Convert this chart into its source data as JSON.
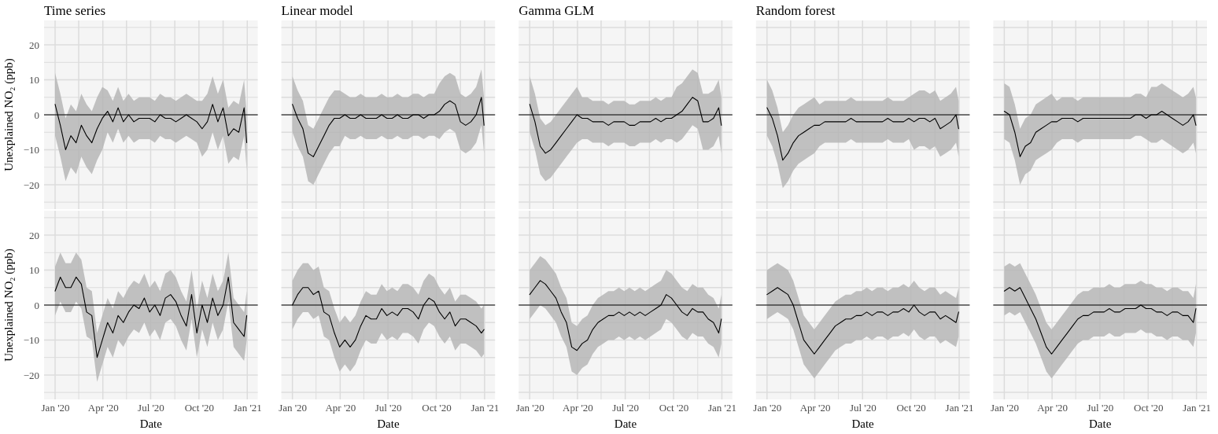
{
  "chart_data": [
    {
      "type": "line",
      "title": "Time series",
      "ylabel": "Unexplained NO₂ (ppb)",
      "tick_labels": "y",
      "grid": true,
      "xlim": [
        "2019-12-11",
        "2021-01-21"
      ],
      "xticks": [
        "2020-01-01",
        "2020-02-15",
        "2020-04-01",
        "2020-05-16",
        "2020-07-01",
        "2020-08-16",
        "2020-10-01",
        "2020-11-16",
        "2021-01-01"
      ],
      "ylim": [
        -27,
        27
      ],
      "yticks": [
        {
          "value": -25,
          "label": null
        },
        {
          "value": -20,
          "label": "−20"
        },
        {
          "value": -15,
          "label": null
        },
        {
          "value": -10,
          "label": "−10"
        },
        {
          "value": -5,
          "label": null
        },
        0,
        {
          "value": 5,
          "label": null
        },
        10,
        {
          "value": 15,
          "label": null
        },
        20,
        {
          "value": 25,
          "label": null
        }
      ],
      "ref_lines": [
        {
          "axis": "y",
          "value": 0,
          "color": "#000000"
        }
      ],
      "x": [
        "2020-01-01",
        "2020-01-11",
        "2020-01-21",
        "2020-01-31",
        "2020-02-10",
        "2020-02-20",
        "2020-03-01",
        "2020-03-11",
        "2020-03-21",
        "2020-03-31",
        "2020-04-10",
        "2020-04-20",
        "2020-04-30",
        "2020-05-10",
        "2020-05-20",
        "2020-05-30",
        "2020-06-09",
        "2020-06-19",
        "2020-06-29",
        "2020-07-09",
        "2020-07-19",
        "2020-07-29",
        "2020-08-08",
        "2020-08-18",
        "2020-08-28",
        "2020-09-07",
        "2020-09-17",
        "2020-09-27",
        "2020-10-07",
        "2020-10-17",
        "2020-10-27",
        "2020-11-06",
        "2020-11-16",
        "2020-11-26",
        "2020-12-06",
        "2020-12-16",
        "2020-12-26",
        "2020-12-31"
      ],
      "series": [
        {
          "color": "#000000",
          "values": [
            3,
            -3,
            -10,
            -6,
            -8,
            -3,
            -6,
            -8,
            -4,
            -1,
            1,
            -2,
            2,
            -2,
            0,
            -2,
            -1,
            -1,
            -1,
            -2,
            0,
            -1,
            -1,
            -2,
            -1,
            0,
            -1,
            -2,
            -4,
            -2,
            3,
            -2,
            2,
            -6,
            -4,
            -5,
            2,
            -8
          ],
          "upper": [
            12,
            6,
            -1,
            3,
            1,
            6,
            3,
            1,
            5,
            8,
            7,
            4,
            8,
            4,
            6,
            4,
            5,
            5,
            5,
            4,
            6,
            5,
            5,
            4,
            5,
            6,
            5,
            4,
            4,
            6,
            11,
            6,
            10,
            2,
            4,
            3,
            10,
            0
          ],
          "lower": [
            -6,
            -12,
            -19,
            -15,
            -17,
            -12,
            -15,
            -17,
            -13,
            -10,
            -5,
            -8,
            -4,
            -8,
            -6,
            -8,
            -7,
            -7,
            -7,
            -8,
            -6,
            -7,
            -7,
            -8,
            -7,
            -6,
            -7,
            -8,
            -12,
            -10,
            -5,
            -10,
            -6,
            -14,
            -12,
            -13,
            -6,
            -16
          ]
        }
      ]
    },
    {
      "type": "line",
      "title": "Linear model",
      "tick_labels": false,
      "grid": true,
      "xlim": [
        "2019-12-11",
        "2021-01-21"
      ],
      "xticks": [
        "2020-01-01",
        "2020-02-15",
        "2020-04-01",
        "2020-05-16",
        "2020-07-01",
        "2020-08-16",
        "2020-10-01",
        "2020-11-16",
        "2021-01-01"
      ],
      "ylim": [
        -27,
        27
      ],
      "yticks": [
        -25,
        -20,
        -15,
        -10,
        -5,
        0,
        5,
        10,
        15,
        20,
        25
      ],
      "ref_lines": [
        {
          "axis": "y",
          "value": 0,
          "color": "#000000"
        }
      ],
      "x": [
        "2020-01-01",
        "2020-01-11",
        "2020-01-21",
        "2020-01-31",
        "2020-02-10",
        "2020-02-20",
        "2020-03-01",
        "2020-03-11",
        "2020-03-21",
        "2020-03-31",
        "2020-04-10",
        "2020-04-20",
        "2020-04-30",
        "2020-05-10",
        "2020-05-20",
        "2020-05-30",
        "2020-06-09",
        "2020-06-19",
        "2020-06-29",
        "2020-07-09",
        "2020-07-19",
        "2020-07-29",
        "2020-08-08",
        "2020-08-18",
        "2020-08-28",
        "2020-09-07",
        "2020-09-17",
        "2020-09-27",
        "2020-10-07",
        "2020-10-17",
        "2020-10-27",
        "2020-11-06",
        "2020-11-16",
        "2020-11-26",
        "2020-12-06",
        "2020-12-16",
        "2020-12-26",
        "2020-12-31"
      ],
      "series": [
        {
          "color": "#000000",
          "values": [
            3,
            -1,
            -4,
            -11,
            -12,
            -9,
            -6,
            -3,
            -1,
            -1,
            0,
            -1,
            -1,
            0,
            -1,
            -1,
            -1,
            0,
            -1,
            -1,
            0,
            -1,
            -1,
            0,
            0,
            -1,
            0,
            0,
            1,
            3,
            4,
            3,
            -2,
            -3,
            -2,
            0,
            5,
            -3
          ],
          "upper": [
            11,
            7,
            4,
            -3,
            -4,
            -1,
            2,
            5,
            7,
            7,
            6,
            5,
            5,
            6,
            5,
            5,
            5,
            6,
            5,
            5,
            6,
            5,
            5,
            6,
            6,
            5,
            6,
            6,
            9,
            11,
            12,
            11,
            6,
            5,
            6,
            8,
            13,
            5
          ],
          "lower": [
            -5,
            -9,
            -12,
            -19,
            -20,
            -17,
            -14,
            -11,
            -9,
            -9,
            -6,
            -7,
            -7,
            -6,
            -7,
            -7,
            -7,
            -6,
            -7,
            -7,
            -6,
            -7,
            -7,
            -6,
            -6,
            -7,
            -6,
            -6,
            -7,
            -5,
            -4,
            -5,
            -10,
            -11,
            -10,
            -8,
            -3,
            -11
          ]
        }
      ]
    },
    {
      "type": "line",
      "title": "Gamma GLM",
      "tick_labels": false,
      "grid": true,
      "xlim": [
        "2019-12-11",
        "2021-01-21"
      ],
      "xticks": [
        "2020-01-01",
        "2020-02-15",
        "2020-04-01",
        "2020-05-16",
        "2020-07-01",
        "2020-08-16",
        "2020-10-01",
        "2020-11-16",
        "2021-01-01"
      ],
      "ylim": [
        -27,
        27
      ],
      "yticks": [
        -25,
        -20,
        -15,
        -10,
        -5,
        0,
        5,
        10,
        15,
        20,
        25
      ],
      "ref_lines": [
        {
          "axis": "y",
          "value": 0,
          "color": "#000000"
        }
      ],
      "x": [
        "2020-01-01",
        "2020-01-11",
        "2020-01-21",
        "2020-01-31",
        "2020-02-10",
        "2020-02-20",
        "2020-03-01",
        "2020-03-11",
        "2020-03-21",
        "2020-03-31",
        "2020-04-10",
        "2020-04-20",
        "2020-04-30",
        "2020-05-10",
        "2020-05-20",
        "2020-05-30",
        "2020-06-09",
        "2020-06-19",
        "2020-06-29",
        "2020-07-09",
        "2020-07-19",
        "2020-07-29",
        "2020-08-08",
        "2020-08-18",
        "2020-08-28",
        "2020-09-07",
        "2020-09-17",
        "2020-09-27",
        "2020-10-07",
        "2020-10-17",
        "2020-10-27",
        "2020-11-06",
        "2020-11-16",
        "2020-11-26",
        "2020-12-06",
        "2020-12-16",
        "2020-12-26",
        "2020-12-31"
      ],
      "series": [
        {
          "color": "#000000",
          "values": [
            3,
            -2,
            -9,
            -11,
            -10,
            -8,
            -6,
            -4,
            -2,
            0,
            -1,
            -1,
            -2,
            -2,
            -2,
            -3,
            -2,
            -2,
            -2,
            -3,
            -3,
            -2,
            -2,
            -2,
            -1,
            -2,
            -1,
            -1,
            0,
            1,
            3,
            5,
            4,
            -2,
            -2,
            -1,
            2,
            -3
          ],
          "upper": [
            11,
            6,
            -1,
            -3,
            -2,
            0,
            2,
            4,
            6,
            8,
            5,
            5,
            4,
            4,
            4,
            3,
            4,
            4,
            4,
            3,
            3,
            4,
            4,
            4,
            5,
            4,
            5,
            5,
            8,
            9,
            11,
            13,
            12,
            6,
            6,
            7,
            10,
            5
          ],
          "lower": [
            -5,
            -10,
            -17,
            -19,
            -18,
            -16,
            -14,
            -12,
            -10,
            -8,
            -7,
            -7,
            -8,
            -8,
            -8,
            -9,
            -8,
            -8,
            -8,
            -9,
            -9,
            -8,
            -8,
            -8,
            -7,
            -8,
            -7,
            -7,
            -8,
            -7,
            -5,
            -3,
            -4,
            -10,
            -10,
            -9,
            -6,
            -11
          ]
        }
      ]
    },
    {
      "type": "line",
      "title": "Random forest",
      "tick_labels": false,
      "grid": true,
      "xlim": [
        "2019-12-11",
        "2021-01-21"
      ],
      "xticks": [
        "2020-01-01",
        "2020-02-15",
        "2020-04-01",
        "2020-05-16",
        "2020-07-01",
        "2020-08-16",
        "2020-10-01",
        "2020-11-16",
        "2021-01-01"
      ],
      "ylim": [
        -27,
        27
      ],
      "yticks": [
        -25,
        -20,
        -15,
        -10,
        -5,
        0,
        5,
        10,
        15,
        20,
        25
      ],
      "ref_lines": [
        {
          "axis": "y",
          "value": 0,
          "color": "#000000"
        }
      ],
      "x": [
        "2020-01-01",
        "2020-01-11",
        "2020-01-21",
        "2020-01-31",
        "2020-02-10",
        "2020-02-20",
        "2020-03-01",
        "2020-03-11",
        "2020-03-21",
        "2020-03-31",
        "2020-04-10",
        "2020-04-20",
        "2020-04-30",
        "2020-05-10",
        "2020-05-20",
        "2020-05-30",
        "2020-06-09",
        "2020-06-19",
        "2020-06-29",
        "2020-07-09",
        "2020-07-19",
        "2020-07-29",
        "2020-08-08",
        "2020-08-18",
        "2020-08-28",
        "2020-09-07",
        "2020-09-17",
        "2020-09-27",
        "2020-10-07",
        "2020-10-17",
        "2020-10-27",
        "2020-11-06",
        "2020-11-16",
        "2020-11-26",
        "2020-12-06",
        "2020-12-16",
        "2020-12-26",
        "2020-12-31"
      ],
      "series": [
        {
          "color": "#000000",
          "values": [
            2,
            -1,
            -6,
            -13,
            -11,
            -8,
            -6,
            -5,
            -4,
            -3,
            -3,
            -2,
            -2,
            -2,
            -2,
            -2,
            -1,
            -2,
            -2,
            -2,
            -2,
            -2,
            -2,
            -1,
            -2,
            -2,
            -2,
            -1,
            -2,
            -1,
            -1,
            -2,
            -1,
            -4,
            -3,
            -2,
            0,
            -4
          ],
          "upper": [
            10,
            7,
            2,
            -5,
            -3,
            0,
            2,
            3,
            4,
            5,
            3,
            4,
            4,
            4,
            4,
            4,
            5,
            4,
            4,
            4,
            4,
            4,
            4,
            5,
            4,
            4,
            4,
            5,
            6,
            7,
            7,
            6,
            7,
            4,
            5,
            6,
            8,
            4
          ],
          "lower": [
            -6,
            -9,
            -14,
            -21,
            -19,
            -16,
            -14,
            -13,
            -12,
            -11,
            -9,
            -8,
            -8,
            -8,
            -8,
            -8,
            -7,
            -8,
            -8,
            -8,
            -8,
            -8,
            -8,
            -7,
            -8,
            -8,
            -8,
            -7,
            -10,
            -9,
            -9,
            -10,
            -9,
            -12,
            -11,
            -10,
            -8,
            -12
          ]
        }
      ]
    },
    {
      "type": "line",
      "tick_labels": false,
      "grid": true,
      "xlim": [
        "2019-12-11",
        "2021-01-21"
      ],
      "xticks": [
        "2020-01-01",
        "2020-02-15",
        "2020-04-01",
        "2020-05-16",
        "2020-07-01",
        "2020-08-16",
        "2020-10-01",
        "2020-11-16",
        "2021-01-01"
      ],
      "ylim": [
        -27,
        27
      ],
      "yticks": [
        -25,
        -20,
        -15,
        -10,
        -5,
        0,
        5,
        10,
        15,
        20,
        25
      ],
      "ref_lines": [
        {
          "axis": "y",
          "value": 0,
          "color": "#000000"
        }
      ],
      "x": [
        "2020-01-01",
        "2020-01-11",
        "2020-01-21",
        "2020-01-31",
        "2020-02-10",
        "2020-02-20",
        "2020-03-01",
        "2020-03-11",
        "2020-03-21",
        "2020-03-31",
        "2020-04-10",
        "2020-04-20",
        "2020-04-30",
        "2020-05-10",
        "2020-05-20",
        "2020-05-30",
        "2020-06-09",
        "2020-06-19",
        "2020-06-29",
        "2020-07-09",
        "2020-07-19",
        "2020-07-29",
        "2020-08-08",
        "2020-08-18",
        "2020-08-28",
        "2020-09-07",
        "2020-09-17",
        "2020-09-27",
        "2020-10-07",
        "2020-10-17",
        "2020-10-27",
        "2020-11-06",
        "2020-11-16",
        "2020-11-26",
        "2020-12-06",
        "2020-12-16",
        "2020-12-26",
        "2020-12-31"
      ],
      "series": [
        {
          "color": "#000000",
          "values": [
            1,
            0,
            -5,
            -12,
            -9,
            -8,
            -5,
            -4,
            -3,
            -2,
            -2,
            -1,
            -1,
            -1,
            -2,
            -1,
            -1,
            -1,
            -1,
            -1,
            -1,
            -1,
            -1,
            -1,
            -1,
            0,
            0,
            -1,
            0,
            0,
            1,
            0,
            -1,
            -2,
            -3,
            -2,
            0,
            -3
          ],
          "upper": [
            9,
            8,
            3,
            -4,
            -1,
            0,
            3,
            4,
            5,
            6,
            4,
            5,
            5,
            5,
            4,
            5,
            5,
            5,
            5,
            5,
            5,
            5,
            5,
            5,
            5,
            6,
            6,
            5,
            8,
            8,
            9,
            8,
            7,
            6,
            5,
            6,
            8,
            5
          ],
          "lower": [
            -7,
            -8,
            -13,
            -20,
            -17,
            -16,
            -13,
            -12,
            -11,
            -10,
            -8,
            -7,
            -7,
            -7,
            -8,
            -7,
            -7,
            -7,
            -7,
            -7,
            -7,
            -7,
            -7,
            -7,
            -7,
            -6,
            -6,
            -7,
            -8,
            -8,
            -7,
            -8,
            -9,
            -10,
            -11,
            -10,
            -8,
            -11
          ]
        }
      ]
    },
    {
      "type": "line",
      "xlabel": "Date",
      "ylabel": "Unexplained NO₂ (ppb)",
      "grid": true,
      "xlim": [
        "2019-12-11",
        "2021-01-21"
      ],
      "xticks": [
        {
          "value": "2020-01-01",
          "label": "Jan '20"
        },
        {
          "value": "2020-02-15",
          "label": null
        },
        {
          "value": "2020-04-01",
          "label": "Apr '20"
        },
        {
          "value": "2020-05-16",
          "label": null
        },
        {
          "value": "2020-07-01",
          "label": "Jul '20"
        },
        {
          "value": "2020-08-16",
          "label": null
        },
        {
          "value": "2020-10-01",
          "label": "Oct '20"
        },
        {
          "value": "2020-11-16",
          "label": null
        },
        {
          "value": "2021-01-01",
          "label": "Jan '21"
        }
      ],
      "ylim": [
        -27,
        27
      ],
      "yticks": [
        {
          "value": -25,
          "label": null
        },
        {
          "value": -20,
          "label": "−20"
        },
        {
          "value": -15,
          "label": null
        },
        {
          "value": -10,
          "label": "−10"
        },
        {
          "value": -5,
          "label": null
        },
        0,
        {
          "value": 5,
          "label": null
        },
        10,
        {
          "value": 15,
          "label": null
        },
        20,
        {
          "value": 25,
          "label": null
        }
      ],
      "ref_lines": [
        {
          "axis": "y",
          "value": 0,
          "color": "#000000"
        }
      ],
      "x": [
        "2020-01-01",
        "2020-01-11",
        "2020-01-21",
        "2020-01-31",
        "2020-02-10",
        "2020-02-20",
        "2020-03-01",
        "2020-03-11",
        "2020-03-21",
        "2020-03-31",
        "2020-04-10",
        "2020-04-20",
        "2020-04-30",
        "2020-05-10",
        "2020-05-20",
        "2020-05-30",
        "2020-06-09",
        "2020-06-19",
        "2020-06-29",
        "2020-07-09",
        "2020-07-19",
        "2020-07-29",
        "2020-08-08",
        "2020-08-18",
        "2020-08-28",
        "2020-09-07",
        "2020-09-17",
        "2020-09-27",
        "2020-10-07",
        "2020-10-17",
        "2020-10-27",
        "2020-11-06",
        "2020-11-16",
        "2020-11-26",
        "2020-12-06",
        "2020-12-16",
        "2020-12-26",
        "2020-12-31"
      ],
      "series": [
        {
          "color": "#000000",
          "values": [
            4,
            8,
            5,
            5,
            8,
            6,
            -2,
            -3,
            -15,
            -10,
            -5,
            -8,
            -3,
            -5,
            -2,
            0,
            -1,
            2,
            -2,
            0,
            -3,
            2,
            3,
            1,
            -3,
            -6,
            3,
            -8,
            0,
            -5,
            2,
            -3,
            0,
            8,
            -5,
            -7,
            -9,
            -3
          ],
          "upper": [
            11,
            15,
            12,
            12,
            15,
            13,
            5,
            4,
            -8,
            -3,
            2,
            -1,
            4,
            2,
            5,
            7,
            6,
            9,
            5,
            7,
            4,
            9,
            10,
            8,
            4,
            1,
            10,
            -1,
            7,
            2,
            9,
            4,
            7,
            15,
            2,
            0,
            -2,
            4
          ],
          "lower": [
            -3,
            1,
            -2,
            -2,
            1,
            -1,
            -9,
            -10,
            -22,
            -17,
            -12,
            -15,
            -10,
            -12,
            -9,
            -7,
            -8,
            -5,
            -9,
            -7,
            -10,
            -5,
            -4,
            -6,
            -10,
            -13,
            -4,
            -15,
            -7,
            -12,
            -5,
            -10,
            -7,
            1,
            -12,
            -14,
            -16,
            -10
          ]
        }
      ]
    },
    {
      "type": "line",
      "xlabel": "Date",
      "tick_labels": "x",
      "grid": true,
      "xlim": [
        "2019-12-11",
        "2021-01-21"
      ],
      "xticks": [
        {
          "value": "2020-01-01",
          "label": "Jan '20"
        },
        {
          "value": "2020-02-15",
          "label": null
        },
        {
          "value": "2020-04-01",
          "label": "Apr '20"
        },
        {
          "value": "2020-05-16",
          "label": null
        },
        {
          "value": "2020-07-01",
          "label": "Jul '20"
        },
        {
          "value": "2020-08-16",
          "label": null
        },
        {
          "value": "2020-10-01",
          "label": "Oct '20"
        },
        {
          "value": "2020-11-16",
          "label": null
        },
        {
          "value": "2021-01-01",
          "label": "Jan '21"
        }
      ],
      "ylim": [
        -27,
        27
      ],
      "yticks": [
        -25,
        -20,
        -15,
        -10,
        -5,
        0,
        5,
        10,
        15,
        20,
        25
      ],
      "ref_lines": [
        {
          "axis": "y",
          "value": 0,
          "color": "#000000"
        }
      ],
      "x": [
        "2020-01-01",
        "2020-01-11",
        "2020-01-21",
        "2020-01-31",
        "2020-02-10",
        "2020-02-20",
        "2020-03-01",
        "2020-03-11",
        "2020-03-21",
        "2020-03-31",
        "2020-04-10",
        "2020-04-20",
        "2020-04-30",
        "2020-05-10",
        "2020-05-20",
        "2020-05-30",
        "2020-06-09",
        "2020-06-19",
        "2020-06-29",
        "2020-07-09",
        "2020-07-19",
        "2020-07-29",
        "2020-08-08",
        "2020-08-18",
        "2020-08-28",
        "2020-09-07",
        "2020-09-17",
        "2020-09-27",
        "2020-10-07",
        "2020-10-17",
        "2020-10-27",
        "2020-11-06",
        "2020-11-16",
        "2020-11-26",
        "2020-12-06",
        "2020-12-16",
        "2020-12-26",
        "2020-12-31"
      ],
      "series": [
        {
          "color": "#000000",
          "values": [
            0,
            3,
            5,
            5,
            3,
            4,
            -2,
            -3,
            -8,
            -12,
            -10,
            -12,
            -10,
            -6,
            -3,
            -4,
            -4,
            -1,
            -3,
            -2,
            -3,
            -1,
            -1,
            -2,
            -4,
            0,
            2,
            1,
            -2,
            -4,
            -2,
            -6,
            -4,
            -4,
            -5,
            -6,
            -8,
            -7
          ],
          "upper": [
            7,
            10,
            12,
            12,
            10,
            11,
            5,
            4,
            -1,
            -5,
            -3,
            -5,
            -3,
            1,
            4,
            3,
            3,
            6,
            4,
            5,
            4,
            6,
            6,
            5,
            3,
            7,
            9,
            8,
            5,
            3,
            5,
            1,
            3,
            3,
            2,
            1,
            -1,
            0
          ],
          "lower": [
            -7,
            -4,
            -2,
            -2,
            -4,
            -3,
            -9,
            -10,
            -15,
            -19,
            -17,
            -19,
            -17,
            -13,
            -10,
            -11,
            -11,
            -8,
            -10,
            -9,
            -10,
            -8,
            -8,
            -9,
            -11,
            -7,
            -5,
            -6,
            -9,
            -11,
            -9,
            -13,
            -11,
            -11,
            -12,
            -13,
            -15,
            -14
          ]
        }
      ]
    },
    {
      "type": "line",
      "xlabel": "Date",
      "tick_labels": "x",
      "grid": true,
      "xlim": [
        "2019-12-11",
        "2021-01-21"
      ],
      "xticks": [
        {
          "value": "2020-01-01",
          "label": "Jan '20"
        },
        {
          "value": "2020-02-15",
          "label": null
        },
        {
          "value": "2020-04-01",
          "label": "Apr '20"
        },
        {
          "value": "2020-05-16",
          "label": null
        },
        {
          "value": "2020-07-01",
          "label": "Jul '20"
        },
        {
          "value": "2020-08-16",
          "label": null
        },
        {
          "value": "2020-10-01",
          "label": "Oct '20"
        },
        {
          "value": "2020-11-16",
          "label": null
        },
        {
          "value": "2021-01-01",
          "label": "Jan '21"
        }
      ],
      "ylim": [
        -27,
        27
      ],
      "yticks": [
        -25,
        -20,
        -15,
        -10,
        -5,
        0,
        5,
        10,
        15,
        20,
        25
      ],
      "ref_lines": [
        {
          "axis": "y",
          "value": 0,
          "color": "#000000"
        }
      ],
      "x": [
        "2020-01-01",
        "2020-01-11",
        "2020-01-21",
        "2020-01-31",
        "2020-02-10",
        "2020-02-20",
        "2020-03-01",
        "2020-03-11",
        "2020-03-21",
        "2020-03-31",
        "2020-04-10",
        "2020-04-20",
        "2020-04-30",
        "2020-05-10",
        "2020-05-20",
        "2020-05-30",
        "2020-06-09",
        "2020-06-19",
        "2020-06-29",
        "2020-07-09",
        "2020-07-19",
        "2020-07-29",
        "2020-08-08",
        "2020-08-18",
        "2020-08-28",
        "2020-09-07",
        "2020-09-17",
        "2020-09-27",
        "2020-10-07",
        "2020-10-17",
        "2020-10-27",
        "2020-11-06",
        "2020-11-16",
        "2020-11-26",
        "2020-12-06",
        "2020-12-16",
        "2020-12-26",
        "2020-12-31"
      ],
      "series": [
        {
          "color": "#000000",
          "values": [
            3,
            5,
            7,
            6,
            4,
            2,
            -2,
            -5,
            -12,
            -13,
            -11,
            -10,
            -7,
            -5,
            -4,
            -3,
            -3,
            -2,
            -3,
            -2,
            -3,
            -2,
            -3,
            -2,
            -1,
            0,
            3,
            2,
            0,
            -2,
            -3,
            -1,
            -2,
            -2,
            -4,
            -5,
            -8,
            -4
          ],
          "upper": [
            10,
            12,
            14,
            13,
            11,
            9,
            5,
            2,
            -5,
            -6,
            -4,
            -3,
            0,
            2,
            3,
            4,
            4,
            5,
            4,
            5,
            4,
            5,
            4,
            5,
            6,
            7,
            10,
            9,
            7,
            5,
            4,
            6,
            5,
            5,
            3,
            2,
            -1,
            3
          ],
          "lower": [
            -4,
            -2,
            0,
            -1,
            -3,
            -5,
            -9,
            -12,
            -19,
            -20,
            -18,
            -17,
            -14,
            -12,
            -11,
            -10,
            -10,
            -9,
            -10,
            -9,
            -10,
            -9,
            -10,
            -9,
            -8,
            -7,
            -4,
            -5,
            -7,
            -9,
            -10,
            -8,
            -9,
            -9,
            -11,
            -12,
            -15,
            -11
          ]
        }
      ]
    },
    {
      "type": "line",
      "xlabel": "Date",
      "tick_labels": "x",
      "grid": true,
      "xlim": [
        "2019-12-11",
        "2021-01-21"
      ],
      "xticks": [
        {
          "value": "2020-01-01",
          "label": "Jan '20"
        },
        {
          "value": "2020-02-15",
          "label": null
        },
        {
          "value": "2020-04-01",
          "label": "Apr '20"
        },
        {
          "value": "2020-05-16",
          "label": null
        },
        {
          "value": "2020-07-01",
          "label": "Jul '20"
        },
        {
          "value": "2020-08-16",
          "label": null
        },
        {
          "value": "2020-10-01",
          "label": "Oct '20"
        },
        {
          "value": "2020-11-16",
          "label": null
        },
        {
          "value": "2021-01-01",
          "label": "Jan '21"
        }
      ],
      "ylim": [
        -27,
        27
      ],
      "yticks": [
        -25,
        -20,
        -15,
        -10,
        -5,
        0,
        5,
        10,
        15,
        20,
        25
      ],
      "ref_lines": [
        {
          "axis": "y",
          "value": 0,
          "color": "#000000"
        }
      ],
      "x": [
        "2020-01-01",
        "2020-01-11",
        "2020-01-21",
        "2020-01-31",
        "2020-02-10",
        "2020-02-20",
        "2020-03-01",
        "2020-03-11",
        "2020-03-21",
        "2020-03-31",
        "2020-04-10",
        "2020-04-20",
        "2020-04-30",
        "2020-05-10",
        "2020-05-20",
        "2020-05-30",
        "2020-06-09",
        "2020-06-19",
        "2020-06-29",
        "2020-07-09",
        "2020-07-19",
        "2020-07-29",
        "2020-08-08",
        "2020-08-18",
        "2020-08-28",
        "2020-09-07",
        "2020-09-17",
        "2020-09-27",
        "2020-10-07",
        "2020-10-17",
        "2020-10-27",
        "2020-11-06",
        "2020-11-16",
        "2020-11-26",
        "2020-12-06",
        "2020-12-16",
        "2020-12-26",
        "2020-12-31"
      ],
      "series": [
        {
          "color": "#000000",
          "values": [
            3,
            4,
            5,
            4,
            3,
            0,
            -5,
            -10,
            -12,
            -14,
            -12,
            -10,
            -8,
            -6,
            -5,
            -4,
            -4,
            -3,
            -3,
            -2,
            -3,
            -2,
            -2,
            -3,
            -2,
            -2,
            -1,
            -2,
            0,
            -2,
            -3,
            -2,
            -2,
            -4,
            -3,
            -4,
            -5,
            -2
          ],
          "upper": [
            10,
            11,
            12,
            11,
            10,
            7,
            2,
            -3,
            -5,
            -7,
            -5,
            -3,
            -1,
            1,
            2,
            3,
            3,
            4,
            4,
            5,
            4,
            5,
            5,
            4,
            5,
            5,
            6,
            5,
            7,
            5,
            4,
            5,
            5,
            3,
            4,
            3,
            2,
            5
          ],
          "lower": [
            -4,
            -3,
            -2,
            -3,
            -4,
            -7,
            -12,
            -17,
            -19,
            -21,
            -19,
            -17,
            -15,
            -13,
            -12,
            -11,
            -11,
            -10,
            -10,
            -9,
            -10,
            -9,
            -9,
            -10,
            -9,
            -9,
            -8,
            -9,
            -7,
            -9,
            -10,
            -9,
            -9,
            -11,
            -10,
            -11,
            -12,
            -9
          ]
        }
      ]
    },
    {
      "type": "line",
      "xlabel": "Date",
      "tick_labels": "x",
      "grid": true,
      "xlim": [
        "2019-12-11",
        "2021-01-21"
      ],
      "xticks": [
        {
          "value": "2020-01-01",
          "label": "Jan '20"
        },
        {
          "value": "2020-02-15",
          "label": null
        },
        {
          "value": "2020-04-01",
          "label": "Apr '20"
        },
        {
          "value": "2020-05-16",
          "label": null
        },
        {
          "value": "2020-07-01",
          "label": "Jul '20"
        },
        {
          "value": "2020-08-16",
          "label": null
        },
        {
          "value": "2020-10-01",
          "label": "Oct '20"
        },
        {
          "value": "2020-11-16",
          "label": null
        },
        {
          "value": "2021-01-01",
          "label": "Jan '21"
        }
      ],
      "ylim": [
        -27,
        27
      ],
      "yticks": [
        -25,
        -20,
        -15,
        -10,
        -5,
        0,
        5,
        10,
        15,
        20,
        25
      ],
      "ref_lines": [
        {
          "axis": "y",
          "value": 0,
          "color": "#000000"
        }
      ],
      "x": [
        "2020-01-01",
        "2020-01-11",
        "2020-01-21",
        "2020-01-31",
        "2020-02-10",
        "2020-02-20",
        "2020-03-01",
        "2020-03-11",
        "2020-03-21",
        "2020-03-31",
        "2020-04-10",
        "2020-04-20",
        "2020-04-30",
        "2020-05-10",
        "2020-05-20",
        "2020-05-30",
        "2020-06-09",
        "2020-06-19",
        "2020-06-29",
        "2020-07-09",
        "2020-07-19",
        "2020-07-29",
        "2020-08-08",
        "2020-08-18",
        "2020-08-28",
        "2020-09-07",
        "2020-09-17",
        "2020-09-27",
        "2020-10-07",
        "2020-10-17",
        "2020-10-27",
        "2020-11-06",
        "2020-11-16",
        "2020-11-26",
        "2020-12-06",
        "2020-12-16",
        "2020-12-26",
        "2020-12-31"
      ],
      "series": [
        {
          "color": "#000000",
          "values": [
            4,
            5,
            4,
            5,
            2,
            -1,
            -4,
            -8,
            -12,
            -14,
            -12,
            -10,
            -8,
            -6,
            -4,
            -3,
            -3,
            -2,
            -2,
            -2,
            -1,
            -2,
            -2,
            -1,
            -1,
            -1,
            0,
            -1,
            -1,
            -2,
            -2,
            -3,
            -2,
            -2,
            -3,
            -3,
            -5,
            -1
          ],
          "upper": [
            11,
            12,
            11,
            12,
            9,
            6,
            3,
            -1,
            -5,
            -7,
            -5,
            -3,
            -1,
            1,
            3,
            4,
            4,
            5,
            5,
            5,
            6,
            5,
            5,
            6,
            6,
            6,
            7,
            6,
            6,
            5,
            5,
            4,
            5,
            5,
            4,
            4,
            2,
            6
          ],
          "lower": [
            -3,
            -2,
            -3,
            -2,
            -5,
            -8,
            -11,
            -15,
            -19,
            -21,
            -19,
            -17,
            -15,
            -13,
            -11,
            -10,
            -10,
            -9,
            -9,
            -9,
            -8,
            -9,
            -9,
            -8,
            -8,
            -8,
            -7,
            -8,
            -8,
            -9,
            -9,
            -10,
            -9,
            -9,
            -10,
            -10,
            -12,
            -8
          ]
        }
      ]
    }
  ]
}
